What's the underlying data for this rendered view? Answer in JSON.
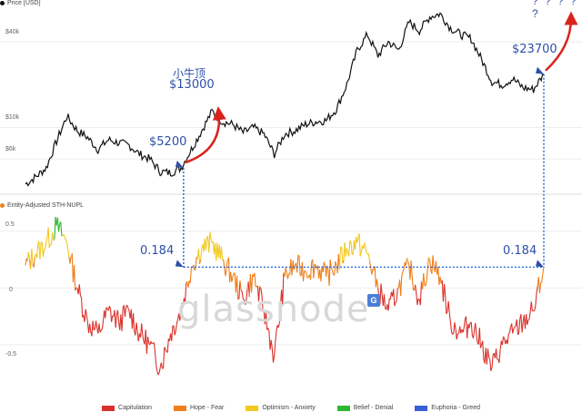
{
  "legend": {
    "price_label": "Price [USD]",
    "nupl_label": "Entity-Adjusted STH-NUPL"
  },
  "price_axis_ticks": [
    "$40k",
    "$10k",
    "$6k"
  ],
  "nupl_axis_ticks": [
    "0.5",
    "0",
    "-0.5"
  ],
  "annotations": {
    "small_bull_top_cn": "小牛顶",
    "small_bull_top_price": "$13000",
    "low_price": "$5200",
    "current_price": "$23700",
    "nupl_left": "0.184",
    "nupl_right": "0.184",
    "unknown_target": "? ? ? ? ?"
  },
  "watermark": "glassnode",
  "watermark_icon": "G",
  "band_legend": [
    {
      "label": "Capitulation",
      "color": "#d9312b"
    },
    {
      "label": "Hope - Fear",
      "color": "#f07e1a"
    },
    {
      "label": "Optimism - Anxiety",
      "color": "#f2c81d"
    },
    {
      "label": "Belief - Denial",
      "color": "#2fb82f"
    },
    {
      "label": "Euphoria - Greed",
      "color": "#3a5fd9"
    }
  ],
  "chart_data": [
    {
      "type": "line",
      "y_log_scale": true,
      "series": [
        {
          "name": "Price [USD]",
          "color": "#111111",
          "x": [
            0,
            2,
            4,
            6,
            8,
            10,
            12,
            14,
            16,
            18,
            20,
            22,
            24,
            26,
            28,
            30,
            32,
            34,
            36,
            38,
            40,
            42,
            44,
            46,
            48,
            50,
            52,
            54,
            56,
            58,
            60,
            62,
            64,
            66,
            68,
            70,
            72,
            74,
            76,
            78,
            80,
            82,
            84,
            86,
            88,
            90,
            92,
            94,
            96,
            98,
            100
          ],
          "values": [
            4000,
            4500,
            5200,
            8000,
            12000,
            9500,
            8500,
            7000,
            8200,
            7800,
            7500,
            6500,
            6000,
            4900,
            4800,
            5200,
            7000,
            9500,
            13000,
            11000,
            10500,
            9200,
            10000,
            9000,
            6500,
            9000,
            9500,
            10500,
            11000,
            11200,
            13500,
            20000,
            35000,
            45000,
            32000,
            40000,
            35000,
            55000,
            48000,
            60000,
            63000,
            50000,
            45000,
            42000,
            30000,
            21000,
            20000,
            22000,
            19000,
            18500,
            23700
          ]
        }
      ],
      "ylabel": "",
      "xlabel": ""
    },
    {
      "type": "line",
      "series": [
        {
          "name": "Entity-Adjusted STH-NUPL",
          "x": [
            0,
            2,
            4,
            6,
            8,
            10,
            12,
            14,
            16,
            18,
            20,
            22,
            24,
            26,
            28,
            30,
            32,
            34,
            36,
            38,
            40,
            42,
            44,
            46,
            48,
            50,
            52,
            54,
            56,
            58,
            60,
            62,
            64,
            66,
            68,
            70,
            72,
            74,
            76,
            78,
            80,
            82,
            84,
            86,
            88,
            90,
            92,
            94,
            96,
            98,
            100
          ],
          "values": [
            0.2,
            0.3,
            0.4,
            0.55,
            0.4,
            0.0,
            -0.3,
            -0.4,
            -0.2,
            -0.3,
            -0.2,
            -0.4,
            -0.5,
            -0.7,
            -0.4,
            -0.2,
            0.184,
            0.35,
            0.4,
            0.25,
            0.1,
            -0.1,
            0.1,
            -0.2,
            -0.6,
            0.1,
            0.2,
            0.15,
            0.2,
            0.1,
            0.2,
            0.35,
            0.4,
            0.3,
            0.0,
            -0.2,
            0.0,
            0.2,
            -0.1,
            0.25,
            0.1,
            -0.3,
            -0.4,
            -0.3,
            -0.5,
            -0.7,
            -0.5,
            -0.4,
            -0.3,
            -0.2,
            0.184
          ]
        }
      ],
      "ylim": [
        -0.9,
        0.65
      ],
      "reference_value": 0.184
    }
  ]
}
